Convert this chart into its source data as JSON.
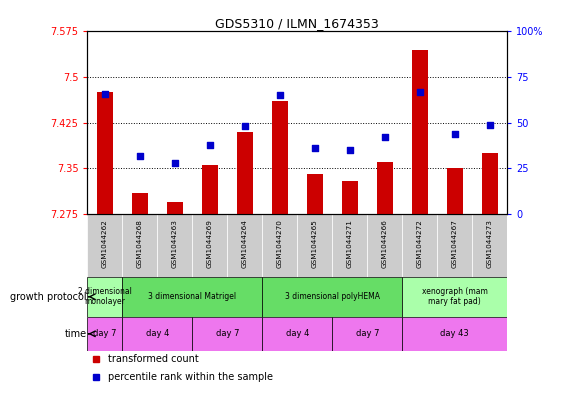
{
  "title": "GDS5310 / ILMN_1674353",
  "samples": [
    "GSM1044262",
    "GSM1044268",
    "GSM1044263",
    "GSM1044269",
    "GSM1044264",
    "GSM1044270",
    "GSM1044265",
    "GSM1044271",
    "GSM1044266",
    "GSM1044272",
    "GSM1044267",
    "GSM1044273"
  ],
  "transformed_counts": [
    7.475,
    7.31,
    7.295,
    7.355,
    7.41,
    7.46,
    7.34,
    7.33,
    7.36,
    7.545,
    7.35,
    7.375
  ],
  "percentile_ranks": [
    66,
    32,
    28,
    38,
    48,
    65,
    36,
    35,
    42,
    67,
    44,
    49
  ],
  "y_min": 7.275,
  "y_max": 7.575,
  "y_ticks": [
    7.275,
    7.35,
    7.425,
    7.5,
    7.575
  ],
  "y_tick_labels": [
    "7.275",
    "7.35",
    "7.425",
    "7.5",
    "7.575"
  ],
  "right_y_ticks": [
    0,
    25,
    50,
    75,
    100
  ],
  "right_y_tick_labels": [
    "0",
    "25",
    "50",
    "75",
    "100%"
  ],
  "bar_color": "#cc0000",
  "dot_color": "#0000cc",
  "growth_protocol_groups": [
    {
      "label": "2 dimensional\nmonolayer",
      "start": 0,
      "end": 1,
      "color": "#aaffaa"
    },
    {
      "label": "3 dimensional Matrigel",
      "start": 1,
      "end": 5,
      "color": "#66dd66"
    },
    {
      "label": "3 dimensional polyHEMA",
      "start": 5,
      "end": 9,
      "color": "#66dd66"
    },
    {
      "label": "xenograph (mam\nmary fat pad)",
      "start": 9,
      "end": 12,
      "color": "#aaffaa"
    }
  ],
  "time_groups": [
    {
      "label": "day 7",
      "start": 0,
      "end": 1
    },
    {
      "label": "day 4",
      "start": 1,
      "end": 3
    },
    {
      "label": "day 7",
      "start": 3,
      "end": 5
    },
    {
      "label": "day 4",
      "start": 5,
      "end": 7
    },
    {
      "label": "day 7",
      "start": 7,
      "end": 9
    },
    {
      "label": "day 43",
      "start": 9,
      "end": 12
    }
  ],
  "time_color": "#ee77ee",
  "sample_bg_color": "#cccccc",
  "growth_protocol_label": "growth protocol",
  "time_label": "time",
  "legend_items": [
    {
      "label": "transformed count",
      "color": "#cc0000"
    },
    {
      "label": "percentile rank within the sample",
      "color": "#0000cc"
    }
  ]
}
